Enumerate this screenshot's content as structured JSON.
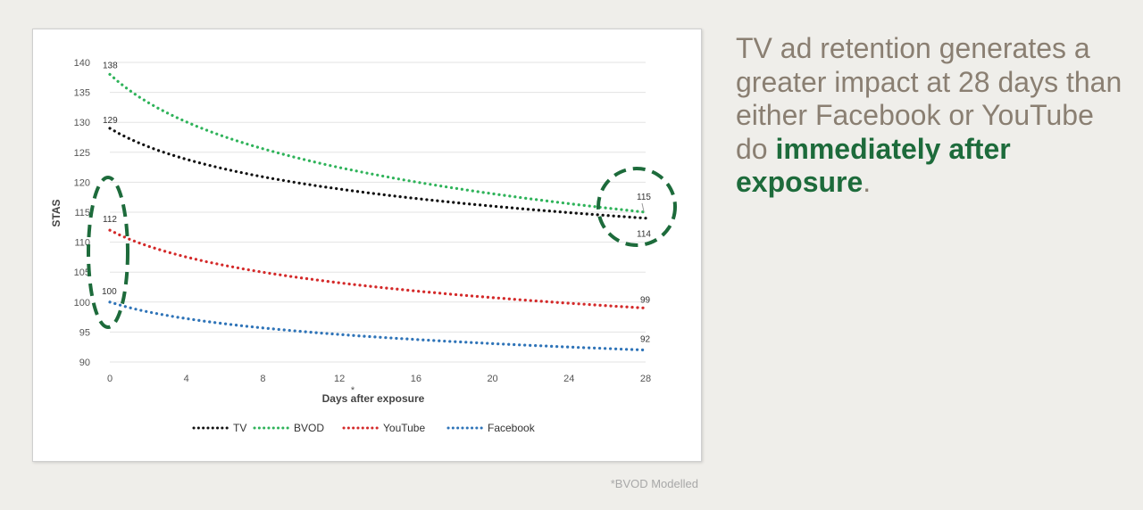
{
  "headline": {
    "text_plain": "TV ad retention generates a greater impact at 28 days than either Facebook or YouTube do",
    "text_emphasis": "immediately after exposure",
    "text_end": "."
  },
  "footnote": "*BVOD Modelled",
  "chart_data": {
    "type": "line",
    "xlabel": "Days after exposure",
    "xlabel_marker": "*",
    "ylabel": "STAS",
    "xlim": [
      0,
      28
    ],
    "ylim": [
      90,
      140
    ],
    "x_ticks": [
      0,
      4,
      8,
      12,
      16,
      20,
      24,
      28
    ],
    "y_ticks": [
      90,
      95,
      100,
      105,
      110,
      115,
      120,
      125,
      130,
      135,
      140
    ],
    "grid": true,
    "legend_position": "bottom",
    "line_style": "dotted",
    "series": [
      {
        "name": "TV",
        "color": "#111111",
        "start_value": 129,
        "end_value": 114,
        "start_label": "129",
        "end_label": "114"
      },
      {
        "name": "BVOD",
        "color": "#2fb35a",
        "start_value": 138,
        "end_value": 115,
        "start_label": "138",
        "end_label": "115"
      },
      {
        "name": "YouTube",
        "color": "#d42a2a",
        "start_value": 112,
        "end_value": 99,
        "start_label": "112",
        "end_label": "99"
      },
      {
        "name": "Facebook",
        "color": "#2f74b8",
        "start_value": 100,
        "end_value": 92,
        "start_label": "100",
        "end_label": "92"
      }
    ],
    "annotations": [
      {
        "type": "dashed-ellipse",
        "color": "#1d6b3b",
        "around": "day 0 values of YouTube and Facebook"
      },
      {
        "type": "dashed-circle",
        "color": "#1d6b3b",
        "around": "day 28 values of TV and BVOD"
      }
    ]
  }
}
